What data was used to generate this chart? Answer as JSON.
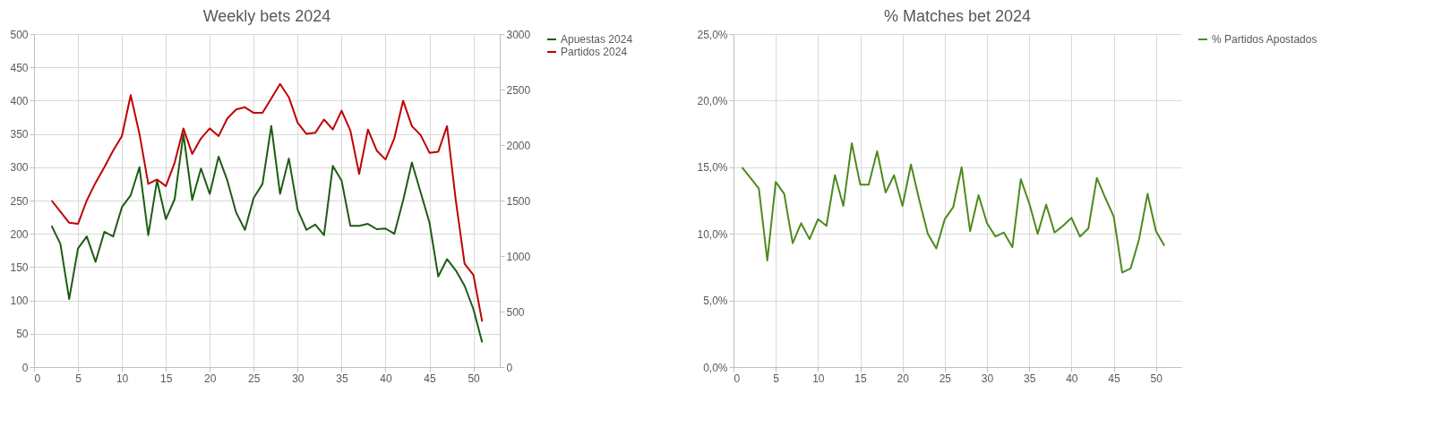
{
  "chart_data": [
    {
      "type": "line",
      "title": "Weekly bets 2024",
      "grid": true,
      "legend": "right",
      "marker": "none",
      "xlim": [
        0,
        53
      ],
      "xticks": [
        0,
        5,
        10,
        15,
        20,
        25,
        30,
        35,
        40,
        45,
        50
      ],
      "ylim": [
        0,
        500
      ],
      "yticks": [
        0,
        50,
        100,
        150,
        200,
        250,
        300,
        350,
        400,
        450,
        500
      ],
      "y2lim": [
        0,
        3000
      ],
      "y2ticks": [
        0,
        500,
        1000,
        1500,
        2000,
        2500,
        3000
      ],
      "x": [
        2,
        3,
        4,
        5,
        6,
        7,
        8,
        9,
        10,
        11,
        12,
        13,
        14,
        15,
        16,
        17,
        18,
        19,
        20,
        21,
        22,
        23,
        24,
        25,
        26,
        27,
        28,
        29,
        30,
        31,
        32,
        33,
        34,
        35,
        36,
        37,
        38,
        39,
        40,
        41,
        42,
        43,
        44,
        45,
        46,
        47,
        48,
        49,
        50,
        51
      ],
      "series": [
        {
          "name": "Apuestas 2024",
          "color": "#1e5c14",
          "axis": "y",
          "values": [
            212,
            185,
            102,
            178,
            196,
            158,
            203,
            196,
            240,
            258,
            300,
            198,
            280,
            222,
            252,
            350,
            251,
            298,
            260,
            316,
            280,
            232,
            206,
            254,
            275,
            362,
            260,
            313,
            236,
            206,
            214,
            198,
            302,
            280,
            212,
            212,
            215,
            207,
            208,
            200,
            250,
            307,
            262,
            217,
            136,
            162,
            145,
            122,
            87,
            37
          ]
        },
        {
          "name": "Partidos 2024",
          "color": "#c00000",
          "axis": "y2",
          "values": [
            1500,
            1400,
            1300,
            1290,
            1500,
            1660,
            1800,
            1950,
            2080,
            2450,
            2100,
            1650,
            1690,
            1630,
            1840,
            2150,
            1920,
            2060,
            2150,
            2080,
            2240,
            2320,
            2340,
            2290,
            2290,
            2420,
            2550,
            2430,
            2200,
            2100,
            2110,
            2230,
            2140,
            2310,
            2130,
            1740,
            2140,
            1950,
            1870,
            2060,
            2400,
            2170,
            2090,
            1930,
            1940,
            2170,
            1500,
            930,
            830,
            410
          ]
        }
      ]
    },
    {
      "type": "line",
      "title": "% Matches bet 2024",
      "grid": true,
      "legend": "right",
      "marker": "none",
      "xlim": [
        0,
        53
      ],
      "xticks": [
        0,
        5,
        10,
        15,
        20,
        25,
        30,
        35,
        40,
        45,
        50
      ],
      "ylim": [
        0,
        25
      ],
      "yticks": [
        {
          "value": 0,
          "label": "0,0%"
        },
        {
          "value": 5,
          "label": "5,0%"
        },
        {
          "value": 10,
          "label": "10,0%"
        },
        {
          "value": 15,
          "label": "15,0%"
        },
        {
          "value": 20,
          "label": "20,0%"
        },
        {
          "value": 25,
          "label": "25,0%"
        }
      ],
      "x": [
        1,
        2,
        3,
        4,
        5,
        6,
        7,
        8,
        9,
        10,
        11,
        12,
        13,
        14,
        15,
        16,
        17,
        18,
        19,
        20,
        21,
        22,
        23,
        24,
        25,
        26,
        27,
        28,
        29,
        30,
        31,
        32,
        33,
        34,
        35,
        36,
        37,
        38,
        39,
        40,
        41,
        42,
        43,
        44,
        45,
        46,
        47,
        48,
        49,
        50,
        51
      ],
      "series": [
        {
          "name": "% Partidos Apostados",
          "color": "#4e8a1e",
          "axis": "y",
          "values": [
            15.0,
            14.2,
            13.4,
            8.0,
            13.9,
            13.0,
            9.3,
            10.8,
            9.6,
            11.1,
            10.6,
            14.4,
            12.1,
            16.8,
            13.7,
            13.7,
            16.2,
            13.1,
            14.4,
            12.1,
            15.2,
            12.5,
            10.0,
            8.9,
            11.1,
            12.0,
            15.0,
            10.2,
            12.9,
            10.8,
            9.8,
            10.1,
            9.0,
            14.1,
            12.3,
            10.0,
            12.2,
            10.1,
            10.6,
            11.2,
            9.8,
            10.4,
            14.2,
            12.7,
            11.3,
            7.1,
            7.4,
            9.6,
            13.0,
            10.2,
            9.1
          ]
        }
      ]
    }
  ]
}
